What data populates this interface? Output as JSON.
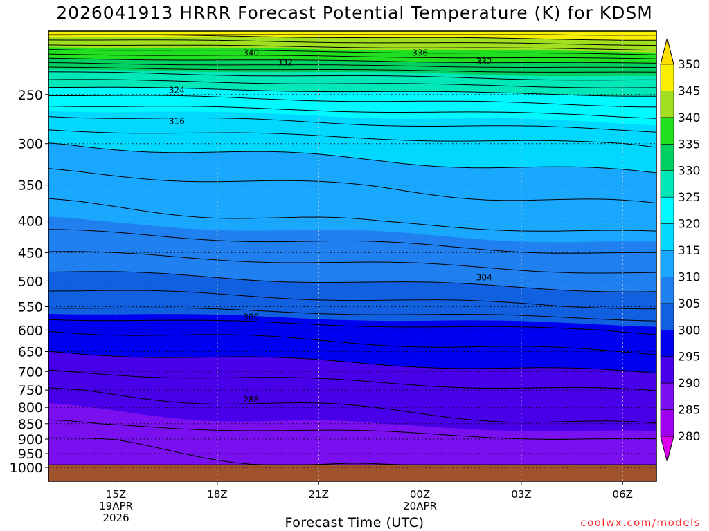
{
  "title": "2026041913 HRRR Forecast Potential Temperature (K) for KDSM",
  "credit": "coolwx.com/models",
  "colorbar": {
    "levels": [
      280,
      285,
      290,
      295,
      300,
      305,
      310,
      315,
      320,
      325,
      330,
      335,
      340,
      345,
      350
    ],
    "colors": [
      "#e000f0",
      "#a000f0",
      "#7a10f0",
      "#4800e8",
      "#0000f0",
      "#1060e0",
      "#2080f0",
      "#1aa8ff",
      "#00d8ff",
      "#00f8ff",
      "#00e8b8",
      "#00d060",
      "#20e020",
      "#a0e020",
      "#f8f000",
      "#ffe000"
    ]
  },
  "chart_data": {
    "type": "heatmap",
    "title": "2026041913 HRRR Forecast Potential Temperature (K) for KDSM",
    "xlabel": "Forecast Time (UTC)",
    "ylabel": "",
    "x_ticks": [
      {
        "label": "15Z",
        "sub": [
          "19APR",
          "2026"
        ]
      },
      {
        "label": "18Z",
        "sub": []
      },
      {
        "label": "21Z",
        "sub": []
      },
      {
        "label": "00Z",
        "sub": [
          "20APR"
        ]
      },
      {
        "label": "03Z",
        "sub": []
      },
      {
        "label": "06Z",
        "sub": []
      }
    ],
    "x_hours": [
      15,
      18,
      21,
      24,
      27,
      30
    ],
    "x_range": [
      13,
      31
    ],
    "y_ticks": [
      250,
      300,
      350,
      400,
      450,
      500,
      550,
      600,
      650,
      700,
      750,
      800,
      850,
      900,
      950,
      1000
    ],
    "y_range_hPa": [
      1000,
      200
    ],
    "surface_hPa": 990,
    "isentropes_profile": [
      {
        "p": 990,
        "theta": 285
      },
      {
        "p": 900,
        "theta": 286
      },
      {
        "p": 850,
        "theta": 288
      },
      {
        "p": 800,
        "theta": 289
      },
      {
        "p": 750,
        "theta": 290
      },
      {
        "p": 700,
        "theta": 292
      },
      {
        "p": 650,
        "theta": 294
      },
      {
        "p": 600,
        "theta": 296
      },
      {
        "p": 550,
        "theta": 300
      },
      {
        "p": 500,
        "theta": 303
      },
      {
        "p": 450,
        "theta": 306
      },
      {
        "p": 400,
        "theta": 309
      },
      {
        "p": 350,
        "theta": 311
      },
      {
        "p": 300,
        "theta": 314
      },
      {
        "p": 270,
        "theta": 318
      },
      {
        "p": 250,
        "theta": 322
      },
      {
        "p": 230,
        "theta": 328
      },
      {
        "p": 215,
        "theta": 336
      },
      {
        "p": 200,
        "theta": 344
      }
    ],
    "contour_labels": [
      {
        "text": "340",
        "hour": 19.0,
        "p": 214
      },
      {
        "text": "336",
        "hour": 24.0,
        "p": 214
      },
      {
        "text": "332",
        "hour": 20.0,
        "p": 222
      },
      {
        "text": "332",
        "hour": 25.9,
        "p": 221
      },
      {
        "text": "324",
        "hour": 16.8,
        "p": 246
      },
      {
        "text": "316",
        "hour": 16.8,
        "p": 276
      },
      {
        "text": "304",
        "hour": 25.9,
        "p": 494
      },
      {
        "text": "300",
        "hour": 19.0,
        "p": 572
      },
      {
        "text": "288",
        "hour": 19.0,
        "p": 777
      }
    ]
  }
}
